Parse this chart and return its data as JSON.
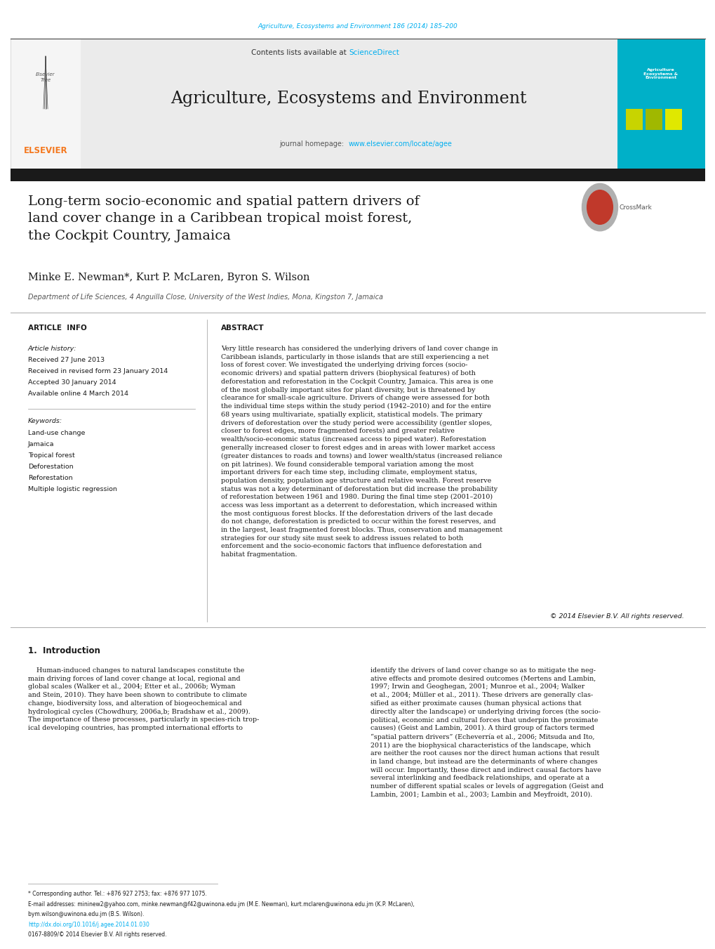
{
  "page_width": 10.2,
  "page_height": 13.51,
  "bg_color": "#ffffff",
  "header_journal_ref": "Agriculture, Ecosystems and Environment 186 (2014) 185–200",
  "journal_title": "Agriculture, Ecosystems and Environment",
  "contents_text": "Contents lists available at ScienceDirect",
  "paper_title": "Long-term socio-economic and spatial pattern drivers of\nland cover change in a Caribbean tropical moist forest,\nthe Cockpit Country, Jamaica",
  "authors": "Minke E. Newman*, Kurt P. McLaren, Byron S. Wilson",
  "affiliation": "Department of Life Sciences, 4 Anguilla Close, University of the West Indies, Mona, Kingston 7, Jamaica",
  "article_info_label": "ARTICLE  INFO",
  "abstract_label": "ABSTRACT",
  "article_history_label": "Article history:",
  "received": "Received 27 June 2013",
  "revised": "Received in revised form 23 January 2014",
  "accepted": "Accepted 30 January 2014",
  "available": "Available online 4 March 2014",
  "keywords_label": "Keywords:",
  "keywords": [
    "Land-use change",
    "Jamaica",
    "Tropical forest",
    "Deforestation",
    "Reforestation",
    "Multiple logistic regression"
  ],
  "abstract_text": "Very little research has considered the underlying drivers of land cover change in Caribbean islands, particularly in those islands that are still experiencing a net loss of forest cover. We investigated the underlying driving forces (socio-economic drivers) and spatial pattern drivers (biophysical features) of both deforestation and reforestation in the Cockpit Country, Jamaica. This area is one of the most globally important sites for plant diversity, but is threatened by clearance for small-scale agriculture. Drivers of change were assessed for both the individual time steps within the study period (1942–2010) and for the entire 68 years using multivariate, spatially explicit, statistical models. The primary drivers of deforestation over the study period were accessibility (gentler slopes, closer to forest edges, more fragmented forests) and greater relative wealth/socio-economic status (increased access to piped water). Reforestation generally increased closer to forest edges and in areas with lower market access (greater distances to roads and towns) and lower wealth/status (increased reliance on pit latrines). We found considerable temporal variation among the most important drivers for each time step, including climate, employment status, population density, population age structure and relative wealth. Forest reserve status was not a key determinant of deforestation but did increase the probability of reforestation between 1961 and 1980. During the final time step (2001–2010) access was less important as a deterrent to deforestation, which increased within the most contiguous forest blocks. If the deforestation drivers of the last decade do not change, deforestation is predicted to occur within the forest reserves, and in the largest, least fragmented forest blocks. Thus, conservation and management strategies for our study site must seek to address issues related to both enforcement and the socio-economic factors that influence deforestation and habitat fragmentation.",
  "copyright": "© 2014 Elsevier B.V. All rights reserved.",
  "intro_heading": "1.  Introduction",
  "intro_left": "    Human-induced changes to natural landscapes constitute the\nmain driving forces of land cover change at local, regional and\nglobal scales (Walker et al., 2004; Etter et al., 2006b; Wyman\nand Stein, 2010). They have been shown to contribute to climate\nchange, biodiversity loss, and alteration of biogeochemical and\nhydrological cycles (Chowdhury, 2006a,b; Bradshaw et al., 2009).\nThe importance of these processes, particularly in species-rich trop-\nical developing countries, has prompted international efforts to",
  "intro_right": "identify the drivers of land cover change so as to mitigate the neg-\native effects and promote desired outcomes (Mertens and Lambin,\n1997; Irwin and Geoghegan, 2001; Munroe et al., 2004; Walker\net al., 2004; Müller et al., 2011). These drivers are generally clas-\nsified as either proximate causes (human physical actions that\ndirectly alter the landscape) or underlying driving forces (the socio-\npolitical, economic and cultural forces that underpin the proximate\ncauses) (Geist and Lambin, 2001). A third group of factors termed\n“spatial pattern drivers” (Echeverría et al., 2006; Mitsuda and Ito,\n2011) are the biophysical characteristics of the landscape, which\nare neither the root causes nor the direct human actions that result\nin land change, but instead are the determinants of where changes\nwill occur. Importantly, these direct and indirect causal factors have\nseveral interlinking and feedback relationships, and operate at a\nnumber of different spatial scales or levels of aggregation (Geist and\nLambin, 2001; Lambin et al., 2003; Lambin and Meyfroidt, 2010).",
  "footnote_star": "* Corresponding author. Tel.: +876 927 2753; fax: +876 977 1075.",
  "footnote_email": "E-mail addresses: mininew2@yahoo.com, minke.newman@f42@uwinona.edu.jm (M.E. Newman), kurt.mclaren@uwinona.edu.jm (K.P. McLaren),",
  "footnote_email2": "bym.wilson@uwinona.edu.jm (B.S. Wilson).",
  "footnote_doi": "http://dx.doi.org/10.1016/j.agee.2014.01.030",
  "footnote_issn": "0167-8809/© 2014 Elsevier B.V. All rights reserved.",
  "color_cyan": "#00aeef",
  "color_orange": "#f47920",
  "color_dark": "#1a1a1a",
  "color_link": "#00aeef",
  "color_header_bg": "#e8e8e8",
  "color_banner": "#1a1a1a",
  "color_journal_box": "#00b0c8"
}
